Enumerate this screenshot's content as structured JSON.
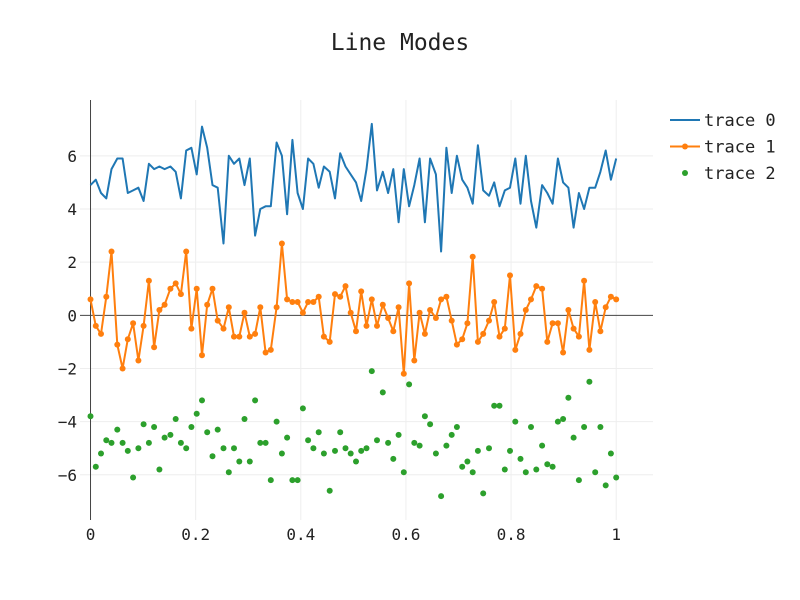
{
  "chart_data": {
    "type": "line",
    "title": "Line Modes",
    "xlabel": "",
    "ylabel": "",
    "xlim": [
      -0.02,
      1.07
    ],
    "ylim": [
      -7.7,
      8.1
    ],
    "x_ticks": [
      0,
      0.2,
      0.4,
      0.6,
      0.8,
      1
    ],
    "x_tick_labels": [
      "0",
      "0.2",
      "0.4",
      "0.6",
      "0.8",
      "1"
    ],
    "y_ticks": [
      -6,
      -4,
      -2,
      0,
      2,
      4,
      6
    ],
    "y_tick_labels": [
      "−6",
      "−4",
      "−2",
      "0",
      "2",
      "4",
      "6"
    ],
    "grid": true,
    "zero_line": true,
    "legend": "top-right",
    "x": [
      0.0,
      0.01,
      0.02,
      0.03,
      0.04,
      0.051,
      0.061,
      0.071,
      0.081,
      0.091,
      0.101,
      0.111,
      0.121,
      0.131,
      0.141,
      0.152,
      0.162,
      0.172,
      0.182,
      0.192,
      0.202,
      0.212,
      0.222,
      0.232,
      0.242,
      0.253,
      0.263,
      0.273,
      0.283,
      0.293,
      0.303,
      0.313,
      0.323,
      0.333,
      0.343,
      0.354,
      0.364,
      0.374,
      0.384,
      0.394,
      0.404,
      0.414,
      0.424,
      0.434,
      0.444,
      0.455,
      0.465,
      0.475,
      0.485,
      0.495,
      0.505,
      0.515,
      0.525,
      0.535,
      0.545,
      0.556,
      0.566,
      0.576,
      0.586,
      0.596,
      0.606,
      0.616,
      0.626,
      0.636,
      0.646,
      0.657,
      0.667,
      0.677,
      0.687,
      0.697,
      0.707,
      0.717,
      0.727,
      0.737,
      0.747,
      0.758,
      0.768,
      0.778,
      0.788,
      0.798,
      0.808,
      0.818,
      0.828,
      0.838,
      0.848,
      0.859,
      0.869,
      0.879,
      0.889,
      0.899,
      0.909,
      0.919,
      0.929,
      0.939,
      0.949,
      0.96,
      0.97,
      0.98,
      0.99,
      1.0
    ],
    "series": [
      {
        "name": "trace 0",
        "mode": "lines",
        "color": "#1f77b4",
        "values": [
          4.9,
          5.1,
          4.6,
          4.4,
          5.5,
          5.9,
          5.9,
          4.6,
          4.7,
          4.8,
          4.3,
          5.7,
          5.5,
          5.6,
          5.5,
          5.6,
          5.4,
          4.4,
          6.2,
          6.3,
          5.3,
          7.1,
          6.3,
          4.9,
          4.8,
          2.7,
          6.0,
          5.7,
          5.9,
          4.9,
          5.9,
          3.0,
          4.0,
          4.1,
          4.1,
          6.5,
          6.0,
          3.8,
          6.6,
          4.6,
          4.0,
          5.9,
          5.7,
          4.8,
          5.6,
          5.4,
          4.4,
          6.1,
          5.6,
          5.3,
          5.0,
          4.3,
          5.5,
          7.2,
          4.7,
          5.4,
          4.6,
          5.5,
          3.5,
          5.5,
          4.1,
          4.9,
          5.9,
          3.5,
          5.9,
          5.3,
          2.4,
          6.3,
          4.6,
          6.0,
          5.1,
          4.8,
          4.2,
          6.4,
          4.7,
          4.5,
          5.0,
          4.1,
          4.7,
          4.8,
          5.9,
          4.2,
          6.0,
          4.3,
          3.3,
          4.9,
          4.6,
          4.2,
          5.9,
          5.0,
          4.8,
          3.3,
          4.6,
          4.0,
          4.8,
          4.8,
          5.4,
          6.2,
          5.1,
          5.9
        ]
      },
      {
        "name": "trace 1",
        "mode": "lines+markers",
        "color": "#ff7f0e",
        "values": [
          0.6,
          -0.4,
          -0.7,
          0.7,
          2.4,
          -1.1,
          -2.0,
          -0.9,
          -0.3,
          -1.7,
          -0.4,
          1.3,
          -1.2,
          0.2,
          0.4,
          1.0,
          1.2,
          0.8,
          2.4,
          -0.5,
          1.0,
          -1.5,
          0.4,
          1.0,
          -0.2,
          -0.5,
          0.3,
          -0.8,
          -0.8,
          0.1,
          -0.8,
          -0.7,
          0.3,
          -1.4,
          -1.3,
          0.3,
          2.7,
          0.6,
          0.5,
          0.5,
          0.1,
          0.5,
          0.5,
          0.7,
          -0.8,
          -1.0,
          0.8,
          0.7,
          1.1,
          0.1,
          -0.6,
          0.9,
          -0.4,
          0.6,
          -0.4,
          0.4,
          -0.1,
          -0.6,
          0.3,
          -2.2,
          1.2,
          -1.7,
          0.1,
          -0.7,
          0.2,
          -0.1,
          0.6,
          0.7,
          -0.2,
          -1.1,
          -0.9,
          -0.3,
          2.2,
          -1.0,
          -0.7,
          -0.2,
          0.5,
          -0.8,
          -0.5,
          1.5,
          -1.3,
          -0.7,
          0.2,
          0.6,
          1.1,
          1.0,
          -1.0,
          -0.3,
          -0.3,
          -1.4,
          0.2,
          -0.5,
          -0.8,
          1.3,
          -1.3,
          0.5,
          -0.6,
          0.3,
          0.7,
          0.6
        ]
      },
      {
        "name": "trace 2",
        "mode": "markers",
        "color": "#2ca02c",
        "values": [
          -3.8,
          -5.7,
          -5.2,
          -4.7,
          -4.8,
          -4.3,
          -4.8,
          -5.1,
          -6.1,
          -5.0,
          -4.1,
          -4.8,
          -4.2,
          -5.8,
          -4.6,
          -4.5,
          -3.9,
          -4.8,
          -5.0,
          -4.2,
          -3.7,
          -3.2,
          -4.4,
          -5.3,
          -4.3,
          -5.0,
          -5.9,
          -5.0,
          -5.5,
          -3.9,
          -5.5,
          -3.2,
          -4.8,
          -4.8,
          -6.2,
          -4.0,
          -5.2,
          -4.6,
          -6.2,
          -6.2,
          -3.5,
          -4.7,
          -5.0,
          -4.4,
          -5.2,
          -6.6,
          -5.1,
          -4.4,
          -5.0,
          -5.2,
          -5.5,
          -5.1,
          -5.0,
          -2.1,
          -4.7,
          -2.9,
          -4.8,
          -5.4,
          -4.5,
          -5.9,
          -2.6,
          -4.8,
          -4.9,
          -3.8,
          -4.1,
          -5.2,
          -6.8,
          -4.9,
          -4.5,
          -4.2,
          -5.7,
          -5.5,
          -5.9,
          -5.1,
          -6.7,
          -5.0,
          -3.4,
          -3.4,
          -5.8,
          -5.1,
          -4.0,
          -5.4,
          -5.9,
          -4.2,
          -5.8,
          -4.9,
          -5.6,
          -5.7,
          -4.0,
          -3.9,
          -3.1,
          -4.6,
          -6.2,
          -4.2,
          -2.5,
          -5.9,
          -4.2,
          -6.4,
          -5.2,
          -6.1
        ]
      }
    ]
  }
}
